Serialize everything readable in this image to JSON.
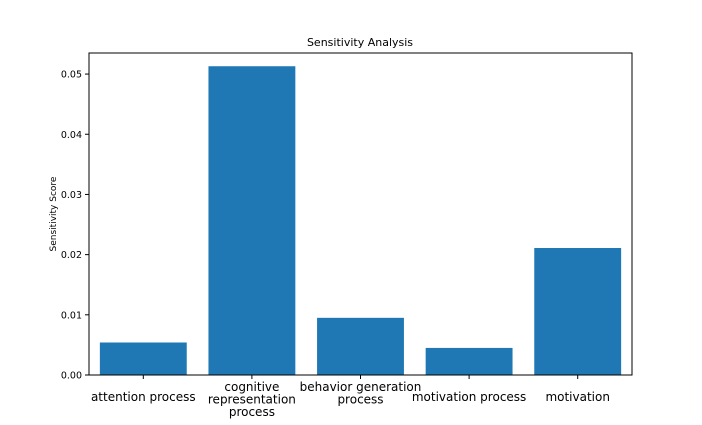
{
  "chart_data": {
    "type": "bar",
    "title": "Sensitivity Analysis",
    "xlabel": "",
    "ylabel": "Sensitivity Score",
    "categories": [
      "attention process",
      "cognitive representation process",
      "behavior generation process",
      "motivation process",
      "motivation"
    ],
    "category_lines": [
      [
        "attention process"
      ],
      [
        "cognitive",
        "representation",
        "process"
      ],
      [
        "behavior generation",
        "process"
      ],
      [
        "motivation process"
      ],
      [
        "motivation"
      ]
    ],
    "values": [
      0.0054,
      0.0513,
      0.0095,
      0.0045,
      0.0211
    ],
    "ylim": [
      0,
      0.0535
    ],
    "yticks": [
      0,
      0.01,
      0.02,
      0.03,
      0.04,
      0.05
    ],
    "ytick_labels": [
      "0.00",
      "0.01",
      "0.02",
      "0.03",
      "0.04",
      "0.05"
    ],
    "grid": false,
    "legend": "none",
    "bar_color": "#1f77b4"
  }
}
